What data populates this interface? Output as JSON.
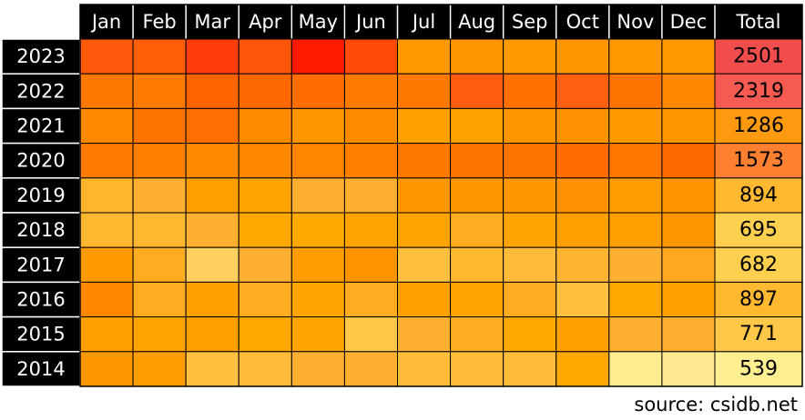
{
  "chart_data": {
    "type": "heatmap",
    "columns": [
      "Jan",
      "Feb",
      "Mar",
      "Apr",
      "May",
      "Jun",
      "Jul",
      "Aug",
      "Sep",
      "Oct",
      "Nov",
      "Dec"
    ],
    "total_label": "Total",
    "categories": [
      "2023",
      "2022",
      "2021",
      "2020",
      "2019",
      "2018",
      "2017",
      "2016",
      "2015",
      "2014"
    ],
    "totals": [
      2501,
      2319,
      1286,
      1573,
      894,
      695,
      682,
      897,
      771,
      539
    ],
    "colors": [
      [
        "#ff5a0a",
        "#ff5e08",
        "#ff3c0a",
        "#ff560a",
        "#ff1a00",
        "#ff4a0a",
        "#ff9900",
        "#ff9600",
        "#ff9a00",
        "#ff9600",
        "#ff9a00",
        "#ff9900"
      ],
      [
        "#ff7800",
        "#ff7c00",
        "#ff6400",
        "#ff6800",
        "#ff6c00",
        "#ff7c00",
        "#ff7800",
        "#ff5c10",
        "#ff7000",
        "#ff6010",
        "#ff7400",
        "#ff8800"
      ],
      [
        "#ff8a00",
        "#ff7400",
        "#ff6e00",
        "#ff8c00",
        "#ff9600",
        "#ff8c00",
        "#ffa000",
        "#ffa200",
        "#ff9600",
        "#ff9200",
        "#ff9a00",
        "#ff9800"
      ],
      [
        "#ff7a00",
        "#ff8000",
        "#ff8a00",
        "#ff8800",
        "#ff8400",
        "#ff8000",
        "#ff7800",
        "#ff7400",
        "#ff7400",
        "#ff6c00",
        "#ff7600",
        "#ff6a00"
      ],
      [
        "#ffb62c",
        "#ffb030",
        "#ffa000",
        "#ffa400",
        "#ffb030",
        "#ffb030",
        "#ff9800",
        "#ff9800",
        "#ff9800",
        "#ff9000",
        "#ff9c00",
        "#ff9400"
      ],
      [
        "#ffb830",
        "#ffb830",
        "#ffb030",
        "#ffa800",
        "#ffa800",
        "#ffa400",
        "#ffa400",
        "#ffac20",
        "#ffa400",
        "#ffa000",
        "#ffa000",
        "#ff9600"
      ],
      [
        "#ff9a00",
        "#ffac20",
        "#ffd060",
        "#ffb030",
        "#ff9c00",
        "#ff9400",
        "#ffc040",
        "#ffb830",
        "#ffbc38",
        "#ffb430",
        "#ffb030",
        "#ffa820"
      ],
      [
        "#ff8800",
        "#ffac20",
        "#ffa000",
        "#ffac20",
        "#ffa400",
        "#ffac20",
        "#ffa000",
        "#ffa400",
        "#ffac20",
        "#ffc040",
        "#ffa800",
        "#ffa000"
      ],
      [
        "#ffa000",
        "#ffa400",
        "#ffa000",
        "#ffa800",
        "#ffa400",
        "#ffc848",
        "#ffb030",
        "#ffac20",
        "#ffa800",
        "#ffa000",
        "#ffb030",
        "#ffb030"
      ],
      [
        "#ff9800",
        "#ff9c00",
        "#ffc040",
        "#ffbc38",
        "#ffb030",
        "#ffb030",
        "#ffbc38",
        "#ffbc38",
        "#ffbc38",
        "#ffa800",
        "#ffeb90",
        "#ffe890"
      ]
    ],
    "total_colors": [
      "#f24d4d",
      "#f65a50",
      "#ff9a10",
      "#ff8030",
      "#ffb830",
      "#ffd050",
      "#ffd050",
      "#ffb830",
      "#ffc848",
      "#ffef90"
    ],
    "source": "source: csidb.net"
  }
}
